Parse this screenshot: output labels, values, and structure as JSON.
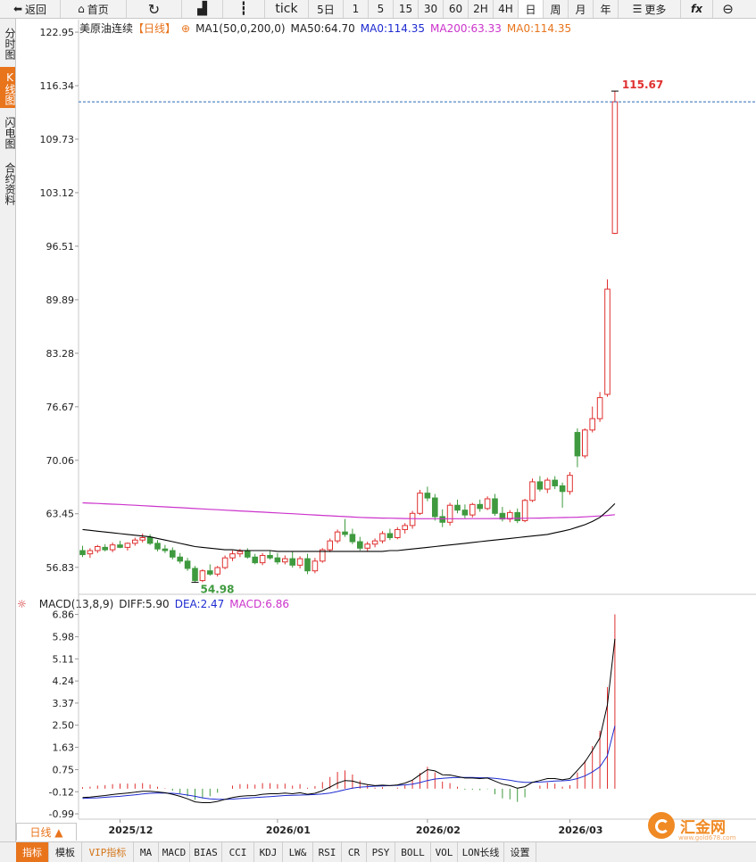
{
  "toolbar": {
    "back_label": "返回",
    "home_label": "首页",
    "tick_label": "tick",
    "periods": [
      "5日",
      "1",
      "5",
      "15",
      "30",
      "60",
      "2H",
      "4H",
      "日",
      "周",
      "月",
      "年"
    ],
    "more_label": "更多"
  },
  "sidebar": {
    "items": [
      "分时图",
      "K线图",
      "闪电图",
      "合约资料"
    ]
  },
  "main": {
    "title": "美原油连续",
    "period_tag": "【日线】",
    "ma1_label": "MA1(50,0,200,0)",
    "ma50_label": "MA50:64.70",
    "ma0a_label": "MA0:114.35",
    "ma200_label": "MA200:63.33",
    "ma0b_label": "MA0:114.35",
    "high_annotation": "115.67",
    "low_annotation": "54.98",
    "y_ticks": [
      "122.95",
      "116.34",
      "109.73",
      "103.12",
      "96.51",
      "89.89",
      "83.28",
      "76.67",
      "70.06",
      "63.45",
      "56.83"
    ]
  },
  "macd": {
    "title": "MACD(13,8,9)",
    "diff_label": "DIFF:5.90",
    "dea_label": "DEA:2.47",
    "macd_label": "MACD:6.86",
    "y_ticks": [
      "6.86",
      "5.98",
      "5.11",
      "4.24",
      "3.37",
      "2.50",
      "1.63",
      "0.75",
      "-0.12",
      "-0.99"
    ]
  },
  "x_labels": [
    "2025/12",
    "2026/01",
    "2026/02",
    "2026/03"
  ],
  "period_tab_label": "日线 ▲",
  "bottom_tabs": [
    "指标",
    "模板",
    "VIP指标",
    "MA",
    "MACD",
    "BIAS",
    "CCI",
    "KDJ",
    "LW&",
    "RSI",
    "CR",
    "PSY",
    "BOLL",
    "VOL",
    "LON长线",
    "设置"
  ],
  "logo": {
    "name": "汇金网",
    "url_text": "www.gold678.com"
  },
  "colors": {
    "up": "#e03030",
    "down": "#3f9a3f",
    "ma50": "#000000",
    "ma200": "#cc33cc",
    "diff": "#000000",
    "dea": "#1e2bd0",
    "accent": "#e8741c"
  },
  "chart_data": {
    "type": "candlestick",
    "title": "美原油连续",
    "y_range": [
      53.5,
      124.5
    ],
    "x_dates": [
      "2025/12",
      "2026/01",
      "2026/02",
      "2026/03"
    ],
    "candles": [
      {
        "o": 58.9,
        "h": 59.5,
        "l": 58.1,
        "c": 58.4
      },
      {
        "o": 58.5,
        "h": 59.2,
        "l": 58.0,
        "c": 58.9
      },
      {
        "o": 58.9,
        "h": 59.6,
        "l": 58.6,
        "c": 59.4
      },
      {
        "o": 59.3,
        "h": 59.7,
        "l": 58.8,
        "c": 59.0
      },
      {
        "o": 59.0,
        "h": 59.9,
        "l": 58.7,
        "c": 59.6
      },
      {
        "o": 59.6,
        "h": 60.1,
        "l": 59.2,
        "c": 59.3
      },
      {
        "o": 59.3,
        "h": 59.9,
        "l": 58.9,
        "c": 59.8
      },
      {
        "o": 59.8,
        "h": 60.5,
        "l": 59.5,
        "c": 60.2
      },
      {
        "o": 60.2,
        "h": 61.0,
        "l": 59.9,
        "c": 60.5
      },
      {
        "o": 60.5,
        "h": 60.9,
        "l": 59.6,
        "c": 59.8
      },
      {
        "o": 59.8,
        "h": 60.2,
        "l": 58.8,
        "c": 59.1
      },
      {
        "o": 59.1,
        "h": 59.6,
        "l": 58.6,
        "c": 58.9
      },
      {
        "o": 58.9,
        "h": 59.3,
        "l": 57.8,
        "c": 58.1
      },
      {
        "o": 58.1,
        "h": 58.6,
        "l": 57.3,
        "c": 57.6
      },
      {
        "o": 57.6,
        "h": 58.0,
        "l": 56.4,
        "c": 56.7
      },
      {
        "o": 56.7,
        "h": 57.0,
        "l": 54.98,
        "c": 55.2
      },
      {
        "o": 55.2,
        "h": 56.6,
        "l": 55.0,
        "c": 56.4
      },
      {
        "o": 56.4,
        "h": 57.2,
        "l": 55.8,
        "c": 56.0
      },
      {
        "o": 56.0,
        "h": 57.0,
        "l": 55.7,
        "c": 56.8
      },
      {
        "o": 56.8,
        "h": 58.3,
        "l": 56.6,
        "c": 58.0
      },
      {
        "o": 58.0,
        "h": 58.9,
        "l": 57.6,
        "c": 58.5
      },
      {
        "o": 58.5,
        "h": 59.1,
        "l": 58.1,
        "c": 58.8
      },
      {
        "o": 58.8,
        "h": 59.2,
        "l": 57.9,
        "c": 58.1
      },
      {
        "o": 58.1,
        "h": 58.5,
        "l": 57.2,
        "c": 57.4
      },
      {
        "o": 57.4,
        "h": 58.6,
        "l": 57.1,
        "c": 58.3
      },
      {
        "o": 58.3,
        "h": 58.9,
        "l": 57.8,
        "c": 58.0
      },
      {
        "o": 58.0,
        "h": 58.6,
        "l": 57.2,
        "c": 57.5
      },
      {
        "o": 57.5,
        "h": 58.3,
        "l": 57.2,
        "c": 57.9
      },
      {
        "o": 57.9,
        "h": 58.8,
        "l": 56.8,
        "c": 57.1
      },
      {
        "o": 57.1,
        "h": 58.2,
        "l": 56.7,
        "c": 57.9
      },
      {
        "o": 57.9,
        "h": 58.5,
        "l": 56.0,
        "c": 56.4
      },
      {
        "o": 56.4,
        "h": 58.0,
        "l": 56.1,
        "c": 57.6
      },
      {
        "o": 57.6,
        "h": 59.2,
        "l": 57.4,
        "c": 59.0
      },
      {
        "o": 59.0,
        "h": 60.4,
        "l": 58.7,
        "c": 60.1
      },
      {
        "o": 60.1,
        "h": 61.5,
        "l": 59.8,
        "c": 61.2
      },
      {
        "o": 61.2,
        "h": 62.8,
        "l": 60.6,
        "c": 60.9
      },
      {
        "o": 60.9,
        "h": 61.6,
        "l": 59.7,
        "c": 60.0
      },
      {
        "o": 60.0,
        "h": 60.6,
        "l": 58.9,
        "c": 59.2
      },
      {
        "o": 59.2,
        "h": 60.0,
        "l": 58.8,
        "c": 59.7
      },
      {
        "o": 59.7,
        "h": 60.4,
        "l": 59.3,
        "c": 60.1
      },
      {
        "o": 60.1,
        "h": 61.3,
        "l": 59.8,
        "c": 61.0
      },
      {
        "o": 61.0,
        "h": 61.6,
        "l": 60.2,
        "c": 60.5
      },
      {
        "o": 60.5,
        "h": 61.8,
        "l": 60.3,
        "c": 61.5
      },
      {
        "o": 61.5,
        "h": 62.3,
        "l": 61.0,
        "c": 62.0
      },
      {
        "o": 62.0,
        "h": 63.8,
        "l": 61.6,
        "c": 63.5
      },
      {
        "o": 63.5,
        "h": 66.4,
        "l": 63.3,
        "c": 66.0
      },
      {
        "o": 66.0,
        "h": 66.8,
        "l": 65.0,
        "c": 65.4
      },
      {
        "o": 65.4,
        "h": 65.9,
        "l": 62.6,
        "c": 63.1
      },
      {
        "o": 63.1,
        "h": 64.0,
        "l": 61.8,
        "c": 62.4
      },
      {
        "o": 62.4,
        "h": 64.8,
        "l": 62.0,
        "c": 64.5
      },
      {
        "o": 64.5,
        "h": 65.2,
        "l": 63.5,
        "c": 63.9
      },
      {
        "o": 63.9,
        "h": 64.6,
        "l": 62.9,
        "c": 63.3
      },
      {
        "o": 63.3,
        "h": 64.8,
        "l": 63.0,
        "c": 64.6
      },
      {
        "o": 64.6,
        "h": 65.2,
        "l": 63.7,
        "c": 64.1
      },
      {
        "o": 64.1,
        "h": 65.6,
        "l": 63.9,
        "c": 65.3
      },
      {
        "o": 65.3,
        "h": 65.9,
        "l": 63.2,
        "c": 63.5
      },
      {
        "o": 63.5,
        "h": 64.3,
        "l": 62.5,
        "c": 62.8
      },
      {
        "o": 62.8,
        "h": 63.9,
        "l": 62.4,
        "c": 63.6
      },
      {
        "o": 63.6,
        "h": 64.1,
        "l": 62.3,
        "c": 62.6
      },
      {
        "o": 62.6,
        "h": 65.3,
        "l": 62.4,
        "c": 65.1
      },
      {
        "o": 65.1,
        "h": 67.8,
        "l": 64.9,
        "c": 67.4
      },
      {
        "o": 67.4,
        "h": 68.1,
        "l": 66.2,
        "c": 66.5
      },
      {
        "o": 66.5,
        "h": 67.9,
        "l": 66.0,
        "c": 67.6
      },
      {
        "o": 67.6,
        "h": 68.1,
        "l": 66.5,
        "c": 66.9
      },
      {
        "o": 66.9,
        "h": 67.3,
        "l": 64.2,
        "c": 66.2
      },
      {
        "o": 66.2,
        "h": 68.6,
        "l": 65.8,
        "c": 68.2
      },
      {
        "o": 73.5,
        "h": 74.0,
        "l": 69.2,
        "c": 70.6
      },
      {
        "o": 70.6,
        "h": 74.0,
        "l": 70.3,
        "c": 73.8
      },
      {
        "o": 73.8,
        "h": 76.7,
        "l": 73.5,
        "c": 75.2
      },
      {
        "o": 75.2,
        "h": 78.5,
        "l": 74.8,
        "c": 77.8
      },
      {
        "o": 78.2,
        "h": 92.4,
        "l": 77.9,
        "c": 91.2
      },
      {
        "o": 98.1,
        "h": 115.67,
        "l": 98.0,
        "c": 114.35
      }
    ],
    "ma50": [
      61.5,
      61.4,
      61.3,
      61.2,
      61.1,
      61.0,
      60.9,
      60.8,
      60.7,
      60.6,
      60.4,
      60.2,
      60.0,
      59.8,
      59.6,
      59.4,
      59.3,
      59.2,
      59.1,
      59.0,
      59.0,
      58.9,
      58.9,
      58.9,
      58.9,
      58.9,
      58.8,
      58.8,
      58.8,
      58.8,
      58.8,
      58.8,
      58.8,
      58.8,
      58.8,
      58.8,
      58.8,
      58.8,
      58.8,
      58.8,
      58.8,
      58.9,
      58.9,
      59.0,
      59.1,
      59.2,
      59.3,
      59.4,
      59.5,
      59.6,
      59.7,
      59.8,
      59.9,
      60.0,
      60.1,
      60.2,
      60.3,
      60.4,
      60.5,
      60.6,
      60.7,
      60.8,
      60.9,
      61.1,
      61.3,
      61.5,
      61.8,
      62.1,
      62.5,
      63.0,
      63.8,
      64.7
    ],
    "ma200": [
      64.8,
      64.76,
      64.72,
      64.68,
      64.64,
      64.6,
      64.55,
      64.5,
      64.45,
      64.4,
      64.35,
      64.3,
      64.25,
      64.2,
      64.15,
      64.1,
      64.05,
      64.0,
      63.95,
      63.9,
      63.85,
      63.8,
      63.75,
      63.7,
      63.65,
      63.6,
      63.55,
      63.5,
      63.45,
      63.4,
      63.35,
      63.3,
      63.25,
      63.2,
      63.15,
      63.1,
      63.05,
      63.0,
      62.97,
      62.94,
      62.92,
      62.9,
      62.88,
      62.86,
      62.85,
      62.84,
      62.84,
      62.84,
      62.84,
      62.84,
      62.84,
      62.84,
      62.85,
      62.85,
      62.85,
      62.86,
      62.86,
      62.87,
      62.88,
      62.89,
      62.9,
      62.92,
      62.94,
      62.96,
      62.98,
      63.0,
      63.03,
      63.07,
      63.12,
      63.18,
      63.25,
      63.33
    ],
    "macd_y_range": [
      -1.2,
      6.95
    ],
    "diff": [
      -0.35,
      -0.33,
      -0.3,
      -0.27,
      -0.23,
      -0.2,
      -0.17,
      -0.14,
      -0.1,
      -0.1,
      -0.13,
      -0.16,
      -0.22,
      -0.3,
      -0.4,
      -0.52,
      -0.55,
      -0.55,
      -0.5,
      -0.42,
      -0.35,
      -0.3,
      -0.28,
      -0.27,
      -0.22,
      -0.2,
      -0.2,
      -0.17,
      -0.2,
      -0.16,
      -0.22,
      -0.18,
      -0.08,
      0.06,
      0.22,
      0.32,
      0.3,
      0.22,
      0.16,
      0.12,
      0.14,
      0.12,
      0.15,
      0.22,
      0.34,
      0.55,
      0.75,
      0.7,
      0.55,
      0.54,
      0.48,
      0.42,
      0.42,
      0.4,
      0.42,
      0.3,
      0.18,
      0.12,
      0.02,
      0.08,
      0.25,
      0.32,
      0.4,
      0.4,
      0.35,
      0.4,
      0.72,
      1.05,
      1.5,
      2.0,
      3.3,
      5.9
    ],
    "dea": [
      -0.38,
      -0.37,
      -0.36,
      -0.34,
      -0.32,
      -0.3,
      -0.27,
      -0.24,
      -0.21,
      -0.18,
      -0.17,
      -0.17,
      -0.18,
      -0.21,
      -0.25,
      -0.3,
      -0.36,
      -0.4,
      -0.42,
      -0.42,
      -0.41,
      -0.39,
      -0.37,
      -0.35,
      -0.33,
      -0.31,
      -0.29,
      -0.27,
      -0.26,
      -0.25,
      -0.24,
      -0.23,
      -0.21,
      -0.17,
      -0.11,
      -0.04,
      0.02,
      0.06,
      0.08,
      0.1,
      0.11,
      0.12,
      0.13,
      0.15,
      0.18,
      0.24,
      0.32,
      0.38,
      0.41,
      0.43,
      0.44,
      0.44,
      0.44,
      0.43,
      0.43,
      0.41,
      0.37,
      0.33,
      0.28,
      0.25,
      0.25,
      0.26,
      0.28,
      0.3,
      0.31,
      0.33,
      0.4,
      0.5,
      0.66,
      0.86,
      1.3,
      2.47
    ]
  }
}
